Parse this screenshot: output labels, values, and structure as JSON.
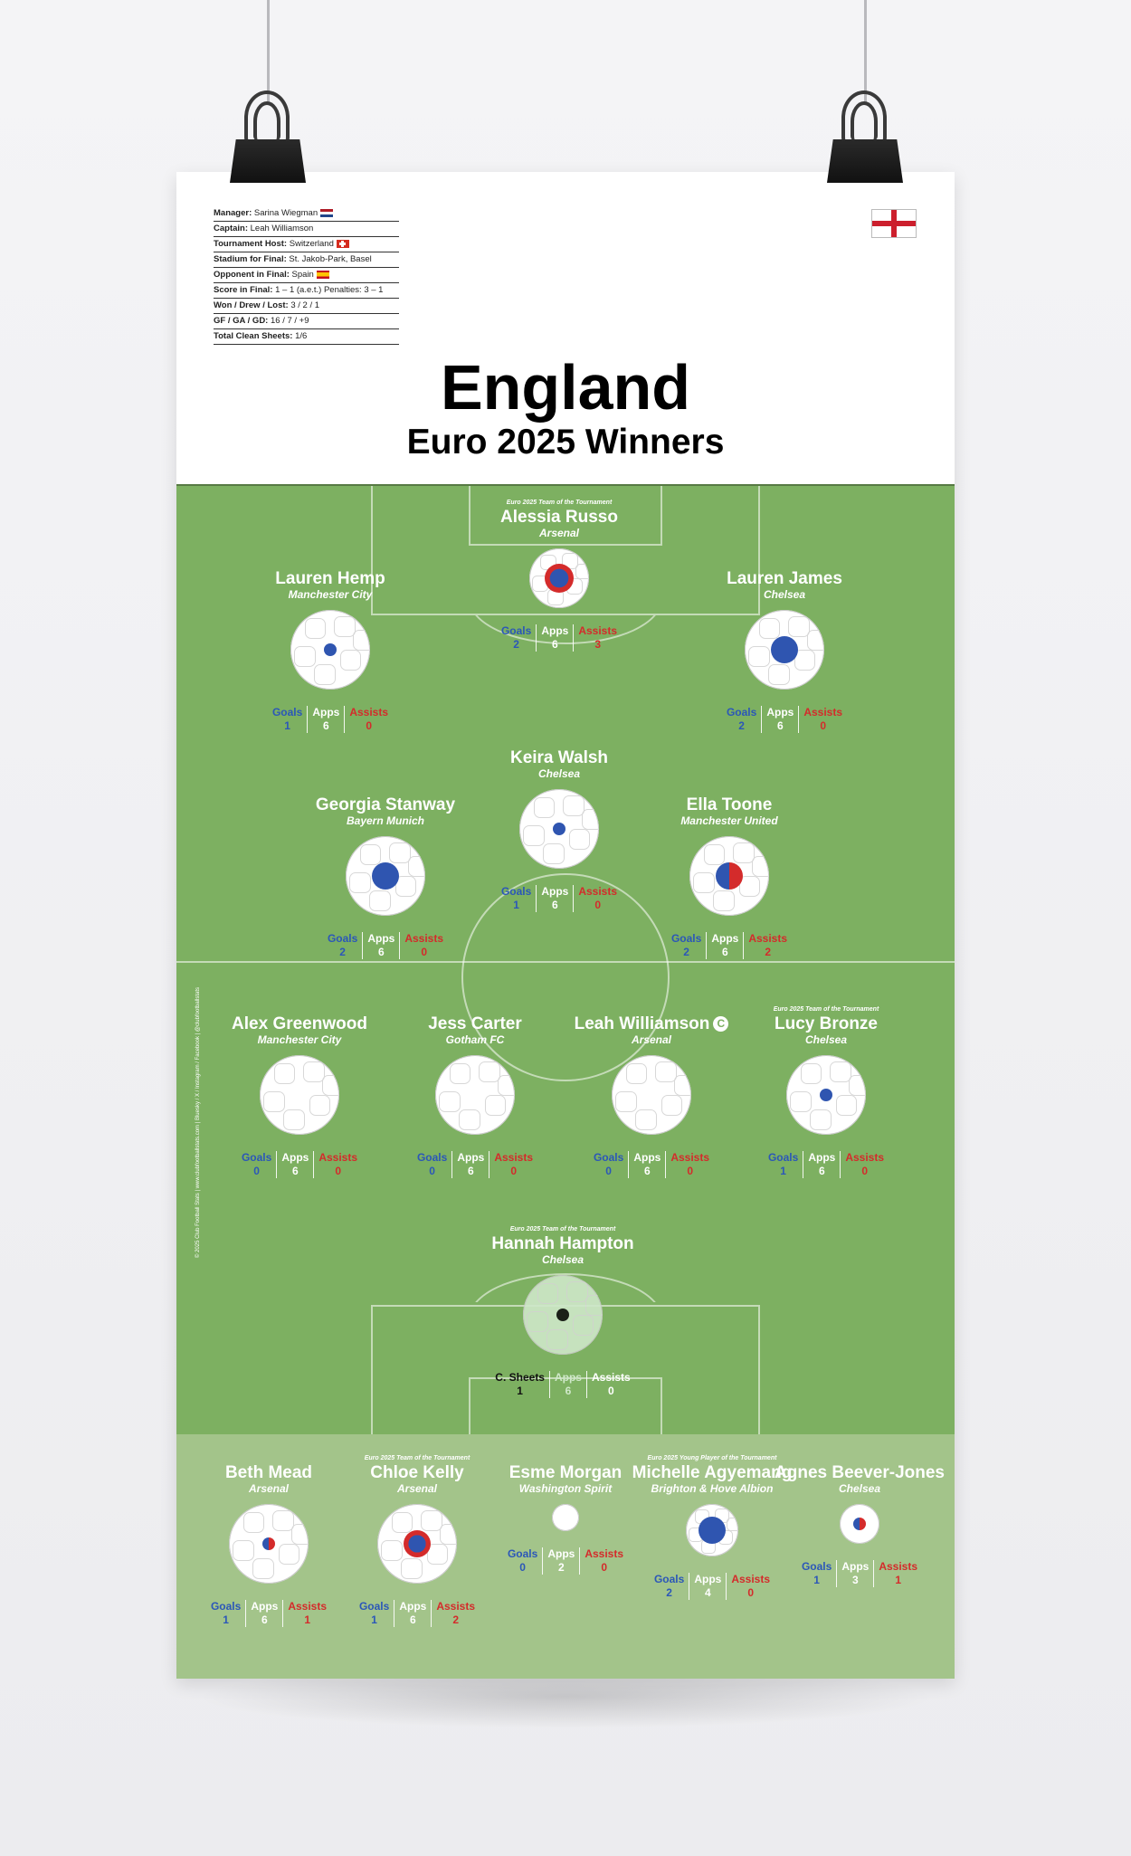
{
  "facts": [
    {
      "label": "Manager:",
      "value": "Sarina Wiegman",
      "flag": "nl"
    },
    {
      "label": "Captain:",
      "value": "Leah Williamson",
      "flag": ""
    },
    {
      "label": "Tournament Host:",
      "value": "Switzerland",
      "flag": "ch"
    },
    {
      "label": "Stadium for Final:",
      "value": "St. Jakob-Park, Basel",
      "flag": ""
    },
    {
      "label": "Opponent in Final:",
      "value": "Spain",
      "flag": "es"
    },
    {
      "label": "Score in Final:",
      "value": "1 – 1 (a.e.t.) Penalties: 3 – 1",
      "flag": ""
    },
    {
      "label": "Won / Drew / Lost:",
      "value": "3 / 2 / 1",
      "flag": ""
    },
    {
      "label": "GF / GA / GD:",
      "value": "16 / 7 / +9",
      "flag": ""
    },
    {
      "label": "Total Clean Sheets:",
      "value": "1/6",
      "flag": ""
    }
  ],
  "title": "England",
  "subtitle": "Euro 2025 Winners",
  "credit": "© 2025 Club Football Stats | www.clubfootballstats.com | Bluesky / X / Instagram / Facebook | @clubfootballstats",
  "colors": {
    "pitch": "#7db061",
    "bench": "#a3c48a",
    "goals": "#2b57b8",
    "assists": "#d42b2b"
  },
  "stat_labels": {
    "goals": "Goals",
    "apps": "Apps",
    "assists": "Assists",
    "sheets": "C. Sheets"
  },
  "players": [
    {
      "id": "russo",
      "name": "Alessia Russo",
      "club": "Arsenal",
      "award": "Euro 2025 Team of the Tournament",
      "goals": "2",
      "apps": "6",
      "assists": "3",
      "ball": {
        "size": 66,
        "inner": 32,
        "fill": "blue-red-ring"
      }
    },
    {
      "id": "hemp",
      "name": "Lauren Hemp",
      "club": "Manchester City",
      "award": "",
      "goals": "1",
      "apps": "6",
      "assists": "0",
      "ball": {
        "size": 88,
        "inner": 14,
        "fill": "blue"
      }
    },
    {
      "id": "james",
      "name": "Lauren James",
      "club": "Chelsea",
      "award": "",
      "goals": "2",
      "apps": "6",
      "assists": "0",
      "ball": {
        "size": 88,
        "inner": 30,
        "fill": "blue"
      }
    },
    {
      "id": "walsh",
      "name": "Keira Walsh",
      "club": "Chelsea",
      "award": "",
      "goals": "1",
      "apps": "6",
      "assists": "0",
      "ball": {
        "size": 88,
        "inner": 14,
        "fill": "blue"
      }
    },
    {
      "id": "stanway",
      "name": "Georgia Stanway",
      "club": "Bayern Munich",
      "award": "",
      "goals": "2",
      "apps": "6",
      "assists": "0",
      "ball": {
        "size": 88,
        "inner": 30,
        "fill": "blue"
      }
    },
    {
      "id": "toone",
      "name": "Ella Toone",
      "club": "Manchester United",
      "award": "",
      "goals": "2",
      "apps": "6",
      "assists": "2",
      "ball": {
        "size": 88,
        "inner": 30,
        "fill": "blue-red"
      }
    },
    {
      "id": "greenwood",
      "name": "Alex Greenwood",
      "club": "Manchester City",
      "award": "",
      "goals": "0",
      "apps": "6",
      "assists": "0",
      "ball": {
        "size": 88,
        "inner": 0,
        "fill": "none"
      }
    },
    {
      "id": "carter",
      "name": "Jess Carter",
      "club": "Gotham FC",
      "award": "",
      "goals": "0",
      "apps": "6",
      "assists": "0",
      "ball": {
        "size": 88,
        "inner": 0,
        "fill": "none"
      }
    },
    {
      "id": "williamson",
      "name": "Leah Williamson",
      "club": "Arsenal",
      "award": "",
      "captain": "C",
      "goals": "0",
      "apps": "6",
      "assists": "0",
      "ball": {
        "size": 88,
        "inner": 0,
        "fill": "none"
      }
    },
    {
      "id": "bronze",
      "name": "Lucy Bronze",
      "club": "Chelsea",
      "award": "Euro 2025 Team of the Tournament",
      "goals": "1",
      "apps": "6",
      "assists": "0",
      "ball": {
        "size": 88,
        "inner": 14,
        "fill": "blue"
      }
    },
    {
      "id": "hampton",
      "name": "Hannah Hampton",
      "club": "Chelsea",
      "award": "Euro 2025 Team of the Tournament",
      "sheets": "1",
      "apps": "6",
      "assists": "0",
      "ball": {
        "size": 88,
        "inner": 14,
        "fill": "black"
      }
    },
    {
      "id": "mead",
      "name": "Beth Mead",
      "club": "Arsenal",
      "award": "",
      "goals": "1",
      "apps": "6",
      "assists": "1",
      "ball": {
        "size": 88,
        "inner": 14,
        "fill": "blue-red"
      }
    },
    {
      "id": "kelly",
      "name": "Chloe Kelly",
      "club": "Arsenal",
      "award": "Euro 2025 Team of the Tournament",
      "goals": "1",
      "apps": "6",
      "assists": "2",
      "ball": {
        "size": 88,
        "inner": 30,
        "fill": "blue-red-ring"
      }
    },
    {
      "id": "morgan",
      "name": "Esme Morgan",
      "club": "Washington Spirit",
      "award": "",
      "goals": "0",
      "apps": "2",
      "assists": "0",
      "ball": {
        "size": 30,
        "inner": 0,
        "fill": "none"
      }
    },
    {
      "id": "agyemang",
      "name": "Michelle Agyemang",
      "club": "Brighton & Hove Albion",
      "award": "Euro 2025 Young Player of the Tournament",
      "goals": "2",
      "apps": "4",
      "assists": "0",
      "ball": {
        "size": 58,
        "inner": 30,
        "fill": "blue"
      }
    },
    {
      "id": "beeverjones",
      "name": "Agnes Beever-Jones",
      "club": "Chelsea",
      "award": "",
      "goals": "1",
      "apps": "3",
      "assists": "1",
      "ball": {
        "size": 44,
        "inner": 14,
        "fill": "blue-red"
      }
    }
  ]
}
